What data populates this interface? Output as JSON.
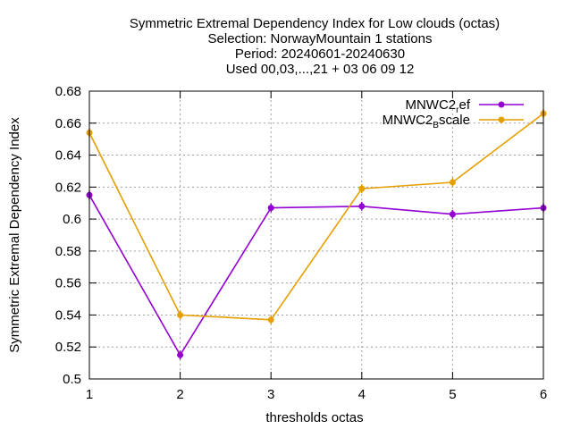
{
  "chart_data": {
    "type": "line",
    "title_lines": [
      "Symmetric Extremal Dependency Index  for Low clouds (octas)",
      "Selection: NorwayMountain      1 stations",
      "Period: 20240601-20240630",
      "Used 00,03,...,21 + 03 06 09 12"
    ],
    "xlabel": "thresholds octas",
    "ylabel": "Symmetric Extremal Dependency Index",
    "xlim": [
      1,
      6
    ],
    "ylim": [
      0.5,
      0.68
    ],
    "x_ticks": [
      "1",
      "2",
      "3",
      "4",
      "5",
      "6"
    ],
    "y_ticks": [
      "0.5",
      "0.52",
      "0.54",
      "0.56",
      "0.58",
      "0.6",
      "0.62",
      "0.64",
      "0.66",
      "0.68"
    ],
    "grid": true,
    "legend_position": "top-right",
    "x": [
      1,
      2,
      3,
      4,
      5,
      6
    ],
    "series": [
      {
        "name": "MNWC2_ref",
        "legend_main": "MNWC2",
        "legend_sub": "r",
        "legend_rest": "ef",
        "color": "#9400d3",
        "values": [
          0.615,
          0.515,
          0.607,
          0.608,
          0.603,
          0.607
        ]
      },
      {
        "name": "MNWC2_Bscale",
        "legend_main": "MNWC2",
        "legend_sub": "B",
        "legend_rest": "scale",
        "color": "#e69f00",
        "values": [
          0.654,
          0.54,
          0.537,
          0.619,
          0.623,
          0.666
        ]
      }
    ]
  }
}
